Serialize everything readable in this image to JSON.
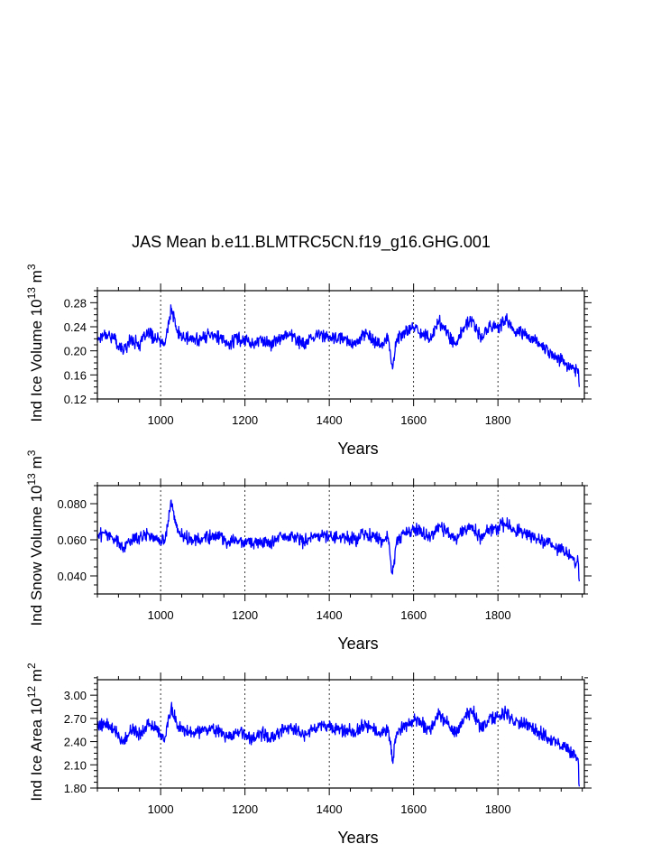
{
  "title": "JAS Mean b.e11.BLMTRC5CN.f19_g16.GHG.001",
  "line_color": "#0000ff",
  "chart_data": [
    {
      "type": "line",
      "ylabel": {
        "prefix": "Ind Ice Volume 10",
        "exp": "13",
        "mid": " m",
        "unit_exp": "3"
      },
      "xlabel": "Years",
      "xlim": [
        850,
        2005
      ],
      "ylim": [
        0.12,
        0.3
      ],
      "yticks": [
        0.12,
        0.16,
        0.2,
        0.24,
        0.28
      ],
      "ytick_labels": [
        "0.12",
        "0.16",
        "0.20",
        "0.24",
        "0.28"
      ],
      "xticks": [
        1000,
        1200,
        1400,
        1600,
        1800
      ],
      "xtick_labels": [
        "1000",
        "1200",
        "1400",
        "1600",
        "1800"
      ],
      "vertical_gridlines": "dashed at major x ticks",
      "series": [
        {
          "x": [
            850,
            870,
            890,
            910,
            930,
            950,
            970,
            990,
            1010,
            1025,
            1040,
            1060,
            1080,
            1100,
            1120,
            1140,
            1160,
            1180,
            1200,
            1220,
            1240,
            1260,
            1280,
            1300,
            1320,
            1340,
            1360,
            1380,
            1400,
            1420,
            1440,
            1460,
            1480,
            1500,
            1520,
            1540,
            1550,
            1560,
            1580,
            1600,
            1620,
            1640,
            1660,
            1680,
            1700,
            1720,
            1740,
            1760,
            1780,
            1800,
            1820,
            1840,
            1860,
            1880,
            1900,
            1920,
            1940,
            1960,
            1970,
            1980,
            1990,
            1993
          ],
          "values": [
            0.22,
            0.23,
            0.22,
            0.2,
            0.22,
            0.21,
            0.23,
            0.22,
            0.21,
            0.27,
            0.23,
            0.22,
            0.22,
            0.22,
            0.23,
            0.22,
            0.21,
            0.22,
            0.22,
            0.21,
            0.22,
            0.21,
            0.22,
            0.23,
            0.22,
            0.21,
            0.22,
            0.23,
            0.22,
            0.22,
            0.22,
            0.21,
            0.23,
            0.22,
            0.21,
            0.22,
            0.17,
            0.22,
            0.23,
            0.24,
            0.23,
            0.22,
            0.25,
            0.23,
            0.21,
            0.24,
            0.25,
            0.22,
            0.24,
            0.24,
            0.25,
            0.23,
            0.23,
            0.22,
            0.21,
            0.2,
            0.19,
            0.18,
            0.17,
            0.17,
            0.17,
            0.14
          ]
        }
      ]
    },
    {
      "type": "line",
      "ylabel": {
        "prefix": "Ind Snow Volume 10",
        "exp": "13",
        "mid": " m",
        "unit_exp": "3"
      },
      "xlabel": "Years",
      "xlim": [
        850,
        2005
      ],
      "ylim": [
        0.03,
        0.09
      ],
      "yticks": [
        0.04,
        0.06,
        0.08
      ],
      "ytick_labels": [
        "0.040",
        "0.060",
        "0.080"
      ],
      "xticks": [
        1000,
        1200,
        1400,
        1600,
        1800
      ],
      "xtick_labels": [
        "1000",
        "1200",
        "1400",
        "1600",
        "1800"
      ],
      "vertical_gridlines": "dashed at major x ticks",
      "series": [
        {
          "x": [
            850,
            870,
            890,
            910,
            930,
            950,
            970,
            990,
            1010,
            1025,
            1040,
            1060,
            1080,
            1100,
            1120,
            1140,
            1160,
            1180,
            1200,
            1220,
            1240,
            1260,
            1280,
            1300,
            1320,
            1340,
            1360,
            1380,
            1400,
            1420,
            1440,
            1460,
            1480,
            1500,
            1520,
            1540,
            1550,
            1560,
            1580,
            1600,
            1620,
            1640,
            1660,
            1680,
            1700,
            1720,
            1740,
            1760,
            1780,
            1800,
            1820,
            1840,
            1860,
            1880,
            1900,
            1920,
            1940,
            1960,
            1970,
            1980,
            1990,
            1993
          ],
          "values": [
            0.062,
            0.064,
            0.061,
            0.056,
            0.06,
            0.061,
            0.063,
            0.06,
            0.059,
            0.082,
            0.064,
            0.061,
            0.06,
            0.061,
            0.062,
            0.061,
            0.059,
            0.06,
            0.06,
            0.058,
            0.06,
            0.058,
            0.061,
            0.062,
            0.061,
            0.059,
            0.062,
            0.063,
            0.062,
            0.061,
            0.061,
            0.06,
            0.063,
            0.062,
            0.06,
            0.061,
            0.041,
            0.06,
            0.063,
            0.066,
            0.064,
            0.062,
            0.068,
            0.064,
            0.06,
            0.066,
            0.068,
            0.061,
            0.066,
            0.067,
            0.069,
            0.065,
            0.064,
            0.062,
            0.06,
            0.058,
            0.055,
            0.053,
            0.05,
            0.049,
            0.048,
            0.037
          ]
        }
      ]
    },
    {
      "type": "line",
      "ylabel": {
        "prefix": "Ind Ice Area 10",
        "exp": "12",
        "mid": " m",
        "unit_exp": "2"
      },
      "xlabel": "Years",
      "xlim": [
        850,
        2005
      ],
      "ylim": [
        1.8,
        3.2
      ],
      "yticks": [
        1.8,
        2.1,
        2.4,
        2.7,
        3.0
      ],
      "ytick_labels": [
        "1.80",
        "2.10",
        "2.40",
        "2.70",
        "3.00"
      ],
      "xticks": [
        1000,
        1200,
        1400,
        1600,
        1800
      ],
      "xtick_labels": [
        "1000",
        "1200",
        "1400",
        "1600",
        "1800"
      ],
      "vertical_gridlines": "dashed at major x ticks",
      "series": [
        {
          "x": [
            850,
            870,
            890,
            910,
            930,
            950,
            970,
            990,
            1010,
            1025,
            1040,
            1060,
            1080,
            1100,
            1120,
            1140,
            1160,
            1180,
            1200,
            1220,
            1240,
            1260,
            1280,
            1300,
            1320,
            1340,
            1360,
            1380,
            1400,
            1420,
            1440,
            1460,
            1480,
            1500,
            1520,
            1540,
            1550,
            1560,
            1580,
            1600,
            1620,
            1640,
            1660,
            1680,
            1700,
            1720,
            1740,
            1760,
            1780,
            1800,
            1820,
            1840,
            1860,
            1880,
            1900,
            1920,
            1940,
            1960,
            1970,
            1980,
            1990,
            1993
          ],
          "values": [
            2.6,
            2.65,
            2.55,
            2.4,
            2.55,
            2.5,
            2.62,
            2.55,
            2.45,
            2.85,
            2.6,
            2.55,
            2.5,
            2.55,
            2.58,
            2.52,
            2.45,
            2.52,
            2.5,
            2.42,
            2.5,
            2.45,
            2.52,
            2.58,
            2.55,
            2.48,
            2.55,
            2.62,
            2.58,
            2.55,
            2.55,
            2.5,
            2.62,
            2.58,
            2.5,
            2.55,
            2.15,
            2.52,
            2.6,
            2.68,
            2.62,
            2.55,
            2.75,
            2.65,
            2.5,
            2.72,
            2.8,
            2.55,
            2.7,
            2.72,
            2.78,
            2.66,
            2.64,
            2.58,
            2.52,
            2.45,
            2.38,
            2.32,
            2.28,
            2.25,
            2.18,
            1.82
          ]
        }
      ]
    }
  ]
}
